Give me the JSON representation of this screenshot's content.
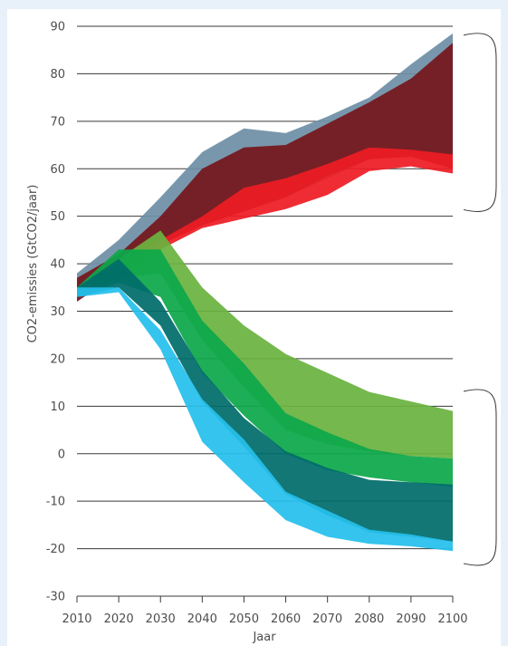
{
  "chart_data": {
    "type": "area",
    "title": "",
    "xlabel": "Jaar",
    "ylabel": "CO2-emissies (GtCO2/jaar)",
    "xlim": [
      2010,
      2100
    ],
    "ylim": [
      -30,
      90
    ],
    "x_ticks": [
      "2010",
      "2020",
      "2030",
      "2040",
      "2050",
      "2060",
      "2070",
      "2080",
      "2090",
      "2100"
    ],
    "y_ticks": [
      "90",
      "80",
      "70",
      "60",
      "50",
      "40",
      "30",
      "20",
      "10",
      "0",
      "-10",
      "-20",
      "-30"
    ],
    "grid": "horizontal",
    "legend": "none",
    "colors": {
      "high_outer": "#6f8fa6",
      "high_dark": "#75171c",
      "high_red": "#ee1c25",
      "low_light_green": "#6bb33f",
      "low_green": "#0da84a",
      "low_teal": "#006d6b",
      "low_cyan": "#25c0ec"
    },
    "series": [
      {
        "color": "high_outer",
        "x": [
          2010,
          2020,
          2030,
          2040,
          2050,
          2060,
          2070,
          2080,
          2090,
          2100
        ],
        "upper": [
          38,
          45,
          54,
          63.5,
          68.5,
          67.5,
          71,
          75,
          82,
          88.5
        ],
        "lower": [
          33,
          40,
          45,
          49,
          51,
          54,
          58,
          62,
          63.5,
          62
        ]
      },
      {
        "color": "high_dark",
        "x": [
          2010,
          2020,
          2030,
          2040,
          2050,
          2060,
          2070,
          2080,
          2090,
          2100
        ],
        "upper": [
          37,
          42,
          50,
          60,
          64.5,
          65,
          69.5,
          74,
          79,
          86.5
        ],
        "lower": [
          32,
          38,
          44,
          48,
          51,
          54,
          58.5,
          62,
          62.5,
          60
        ]
      },
      {
        "color": "high_red",
        "x": [
          2010,
          2020,
          2030,
          2040,
          2050,
          2060,
          2070,
          2080,
          2090,
          2100
        ],
        "upper": [
          35,
          40,
          45,
          50,
          56,
          58,
          61,
          64.5,
          64,
          63
        ],
        "lower": [
          33,
          38,
          43,
          47.5,
          49.5,
          51.5,
          54.5,
          59.5,
          60.5,
          59
        ]
      },
      {
        "color": "low_light_green",
        "x": [
          2010,
          2020,
          2030,
          2040,
          2050,
          2060,
          2070,
          2080,
          2090,
          2100
        ],
        "upper": [
          35,
          41,
          47,
          35,
          27,
          21,
          17,
          13,
          11,
          9
        ],
        "lower": [
          33,
          37,
          38,
          24,
          14,
          5,
          2,
          0.5,
          -0.5,
          -1
        ]
      },
      {
        "color": "low_green",
        "x": [
          2010,
          2020,
          2030,
          2040,
          2050,
          2060,
          2070,
          2080,
          2090,
          2100
        ],
        "upper": [
          35,
          43,
          43,
          28,
          19,
          8.5,
          4.5,
          1,
          -0.5,
          -1
        ],
        "lower": [
          33,
          36,
          33,
          17,
          8,
          0,
          -3.5,
          -5,
          -6,
          -7
        ]
      },
      {
        "color": "low_teal",
        "x": [
          2010,
          2020,
          2030,
          2040,
          2050,
          2060,
          2070,
          2080,
          2090,
          2100
        ],
        "upper": [
          35,
          41,
          32,
          17.5,
          7.5,
          0.5,
          -3,
          -5.5,
          -6,
          -6.5
        ],
        "lower": [
          33,
          35,
          27,
          11,
          1.5,
          -8.5,
          -13,
          -16.5,
          -17.5,
          -18.5
        ]
      },
      {
        "color": "low_cyan",
        "x": [
          2010,
          2020,
          2030,
          2040,
          2050,
          2060,
          2070,
          2080,
          2090,
          2100
        ],
        "upper": [
          35,
          35,
          26,
          11.5,
          3,
          -8,
          -12,
          -16,
          -17,
          -18.5
        ],
        "lower": [
          33,
          34,
          22,
          2.5,
          -6,
          -14,
          -17.5,
          -19,
          -19.5,
          -20.5
        ]
      }
    ],
    "brackets": [
      {
        "group": "high",
        "y_top": 88.5,
        "y_bottom": 51
      },
      {
        "group": "low",
        "y_top": 13.5,
        "y_bottom": -23.5
      }
    ]
  }
}
